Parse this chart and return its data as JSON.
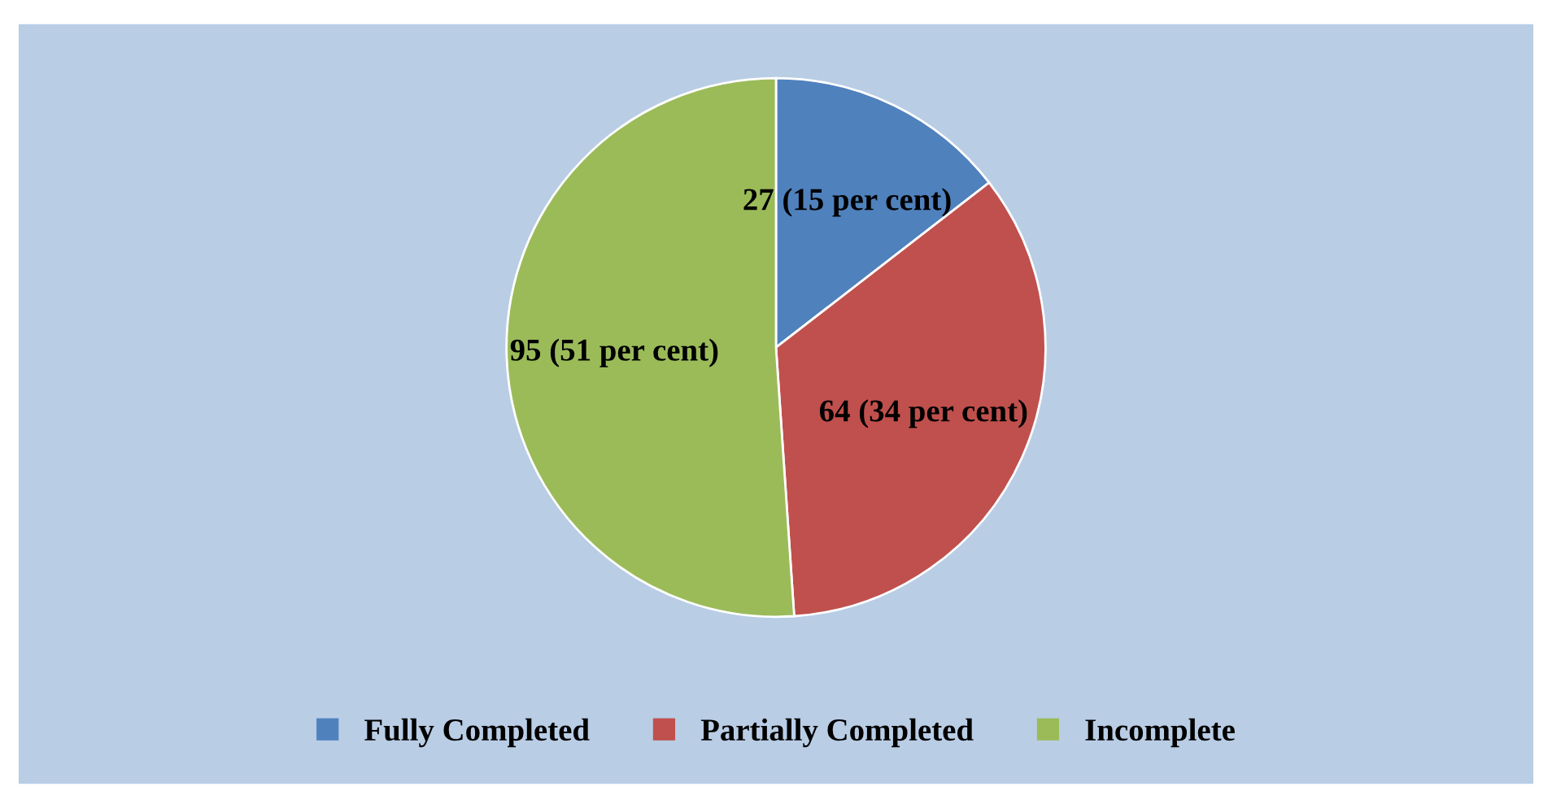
{
  "chart_data": {
    "type": "pie",
    "categories": [
      "Fully Completed",
      "Partially Completed",
      "Incomplete"
    ],
    "values": [
      27,
      64,
      95
    ],
    "colors": [
      "#4f81bd",
      "#c0504d",
      "#9bbb59"
    ],
    "value_labels": [
      "27 (15 per cent)",
      "64 (34 per cent)",
      "95 (51 per cent)"
    ],
    "legend": "bottom"
  }
}
